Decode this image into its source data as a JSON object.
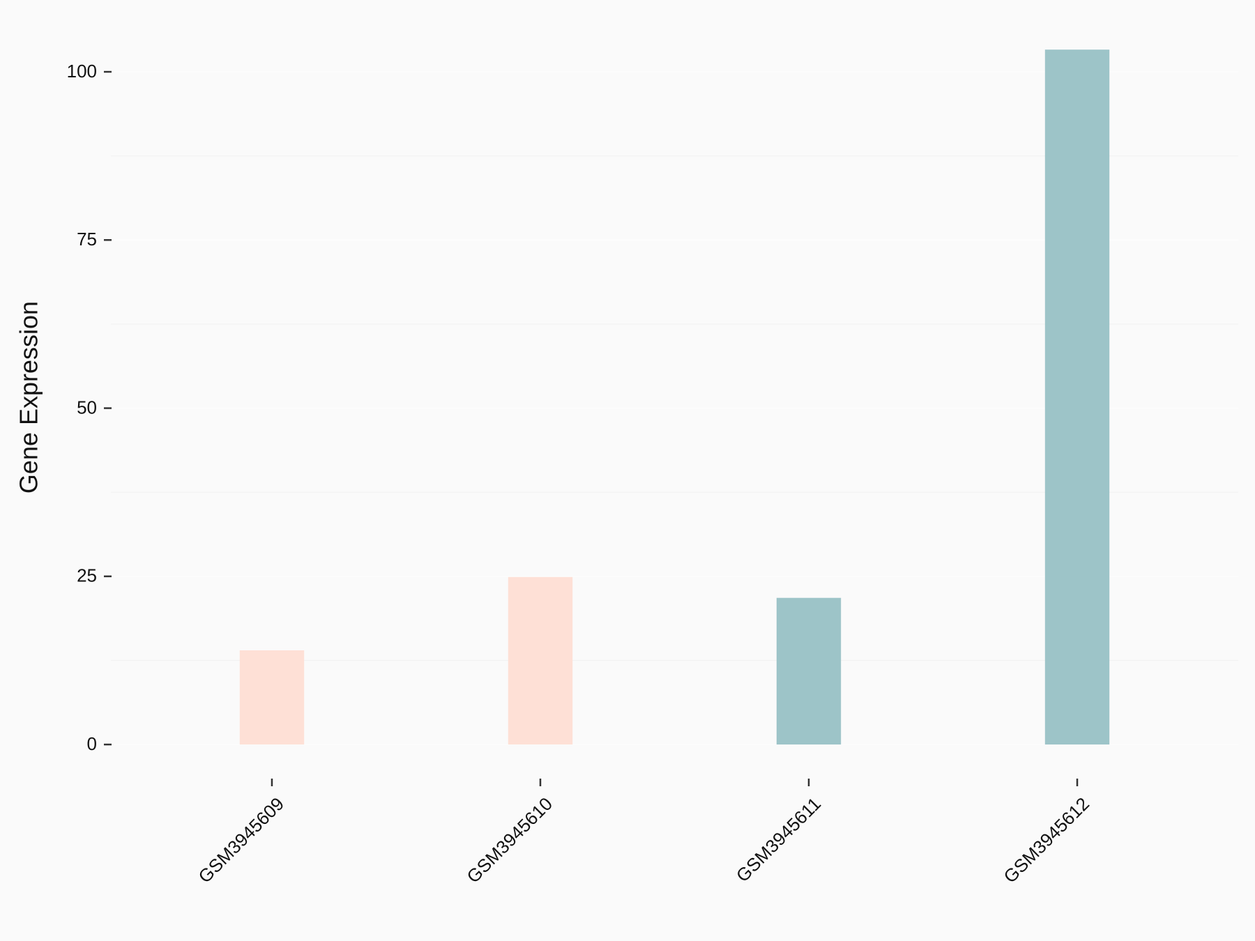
{
  "chart_data": {
    "type": "bar",
    "y_label": "Gene Expression",
    "categories": [
      "GSM3945609",
      "GSM3945610",
      "GSM3945611",
      "GSM3945612"
    ],
    "values": [
      14,
      24.9,
      21.8,
      103.3
    ],
    "colors": [
      "#fee0d6",
      "#fee0d6",
      "#9dc4c8",
      "#9dc4c8"
    ],
    "ylim": [
      -5.17,
      108.5
    ],
    "yticks": [
      0,
      25,
      50,
      75,
      100
    ],
    "grid": true
  }
}
